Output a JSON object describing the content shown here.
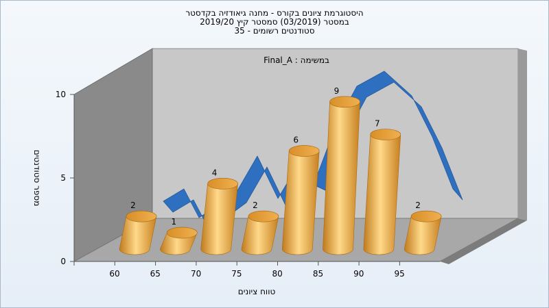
{
  "title_lines": [
    "היסטוגרמת ציונים בקורס - מחנה גיאודזיה בקדסטר",
    "במסטר  (03/2019)  סמסטר קיץ 2019/20",
    "סטודנטים רשומים - 35"
  ],
  "chart_data": {
    "type": "bar",
    "style": "3d-cylinder",
    "categories": [
      "60",
      "65",
      "70",
      "75",
      "80",
      "85",
      "90",
      "95"
    ],
    "values": [
      2,
      1,
      4,
      2,
      6,
      9,
      7,
      2
    ],
    "xlabel": "טווח ציונים",
    "ylabel": "מספר סטודנטים",
    "yticks": [
      "0",
      "5",
      "10"
    ],
    "ylim": [
      0,
      10
    ],
    "annotation": "Final_A : במשימה",
    "trend_curve": "normal distribution fit",
    "grid": false,
    "colors": {
      "bar": "#e8a23c",
      "bar_light": "#ffd98a",
      "bar_dark": "#b86f12",
      "curve": "#2f6fbf",
      "back_wall": "#c8c8c8",
      "side_wall": "#8a8a8a",
      "floor": "#a8a8a8"
    }
  }
}
